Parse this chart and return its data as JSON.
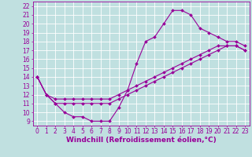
{
  "bg_color": "#c0e0e0",
  "grid_color": "#ffffff",
  "line_color": "#990099",
  "xlabel": "Windchill (Refroidissement éolien,°C)",
  "xlabel_fontsize": 6.5,
  "tick_fontsize": 5.5,
  "xlim": [
    -0.5,
    23.5
  ],
  "ylim": [
    8.5,
    22.5
  ],
  "xticks": [
    0,
    1,
    2,
    3,
    4,
    5,
    6,
    7,
    8,
    9,
    10,
    11,
    12,
    13,
    14,
    15,
    16,
    17,
    18,
    19,
    20,
    21,
    22,
    23
  ],
  "yticks": [
    9,
    10,
    11,
    12,
    13,
    14,
    15,
    16,
    17,
    18,
    19,
    20,
    21,
    22
  ],
  "curve1_x": [
    0,
    1,
    2,
    3,
    4,
    5,
    6,
    7,
    8,
    9,
    10,
    11,
    12,
    13,
    14,
    15,
    16,
    17,
    18,
    19,
    20,
    21,
    22,
    23
  ],
  "curve1_y": [
    14,
    12,
    11,
    10,
    9.5,
    9.5,
    9,
    9,
    9,
    10.5,
    12.5,
    15.5,
    18,
    18.5,
    20,
    21.5,
    21.5,
    21,
    19.5,
    19,
    18.5,
    18,
    18,
    17.5
  ],
  "curve2_x": [
    0,
    1,
    2,
    3,
    4,
    5,
    6,
    7,
    8,
    9,
    10,
    11,
    12,
    13,
    14,
    15,
    16,
    17,
    18,
    19,
    20,
    21,
    22,
    23
  ],
  "curve2_y": [
    14,
    12,
    11.5,
    11.5,
    11.5,
    11.5,
    11.5,
    11.5,
    11.5,
    12,
    12.5,
    13,
    13.5,
    14,
    14.5,
    15,
    15.5,
    16,
    16.5,
    17,
    17.5,
    17.5,
    17.5,
    17
  ],
  "curve3_x": [
    0,
    1,
    2,
    3,
    4,
    5,
    6,
    7,
    8,
    9,
    10,
    11,
    12,
    13,
    14,
    15,
    16,
    17,
    18,
    19,
    20,
    21,
    22,
    23
  ],
  "curve3_y": [
    14,
    12,
    11,
    11,
    11,
    11,
    11,
    11,
    11,
    11.5,
    12,
    12.5,
    13,
    13.5,
    14,
    14.5,
    15,
    15.5,
    16,
    16.5,
    17,
    17.5,
    17.5,
    17
  ]
}
